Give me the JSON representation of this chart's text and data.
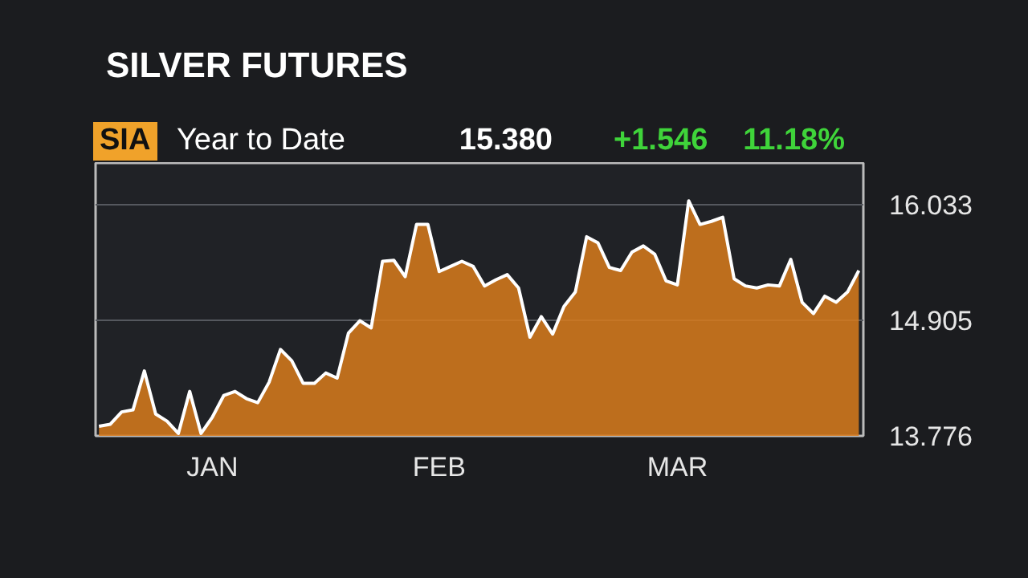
{
  "chart_data": {
    "type": "area",
    "title": "SILVER FUTURES",
    "annotations": [
      "SIA",
      "Year to Date",
      "15.380",
      "+1.546",
      "11.18%"
    ],
    "categories": [
      null,
      null,
      null,
      null,
      null,
      null,
      null,
      null,
      null,
      null,
      "JAN",
      null,
      null,
      null,
      null,
      null,
      null,
      null,
      null,
      null,
      null,
      null,
      null,
      null,
      null,
      null,
      null,
      null,
      null,
      null,
      "FEB",
      null,
      null,
      null,
      null,
      null,
      null,
      null,
      null,
      null,
      null,
      null,
      null,
      null,
      null,
      null,
      null,
      null,
      null,
      null,
      null,
      "MAR",
      null,
      null,
      null,
      null,
      null,
      null,
      null,
      null,
      null,
      null,
      null,
      null,
      null,
      null,
      null,
      null
    ],
    "series": [
      {
        "color": "#d97b1c",
        "values": [
          13.87,
          13.89,
          14.01,
          14.03,
          14.41,
          13.99,
          13.92,
          13.8,
          14.21,
          13.8,
          13.96,
          14.17,
          14.21,
          14.14,
          14.1,
          14.3,
          14.62,
          14.51,
          14.29,
          14.29,
          14.39,
          14.34,
          14.78,
          14.9,
          14.83,
          15.48,
          15.49,
          15.33,
          15.84,
          15.84,
          15.38,
          15.43,
          15.48,
          15.43,
          15.24,
          15.3,
          15.35,
          15.22,
          14.74,
          14.94,
          14.77,
          15.04,
          15.18,
          15.72,
          15.66,
          15.42,
          15.39,
          15.57,
          15.63,
          15.55,
          15.29,
          15.25,
          16.07,
          15.84,
          15.87,
          15.91,
          15.31,
          15.24,
          15.22,
          15.25,
          15.24,
          15.5,
          15.08,
          14.97,
          15.14,
          15.08,
          15.18,
          15.39
        ]
      }
    ],
    "ylim": [
      13.776,
      16.44
    ],
    "yticks": [
      13.776,
      14.905,
      16.033
    ],
    "grid": "y"
  }
}
